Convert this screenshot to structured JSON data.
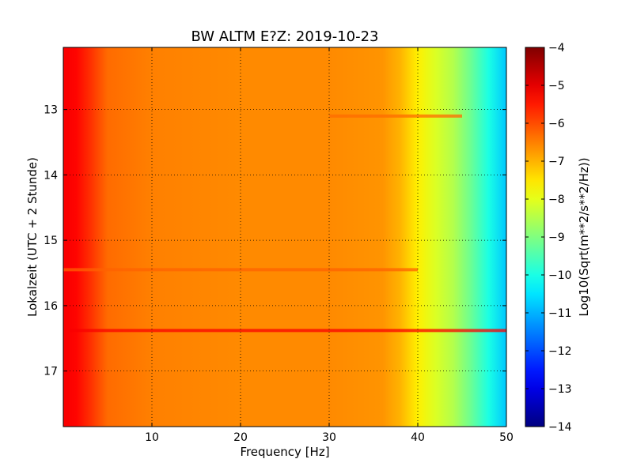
{
  "chart_data": {
    "type": "heatmap",
    "title": "BW ALTM E?Z: 2019-10-23",
    "xlabel": "Frequency [Hz]",
    "ylabel": "Lokalzeit (UTC + 2 Stunde)",
    "xlim": [
      0,
      50
    ],
    "ylim": [
      17.85,
      12.05
    ],
    "y_inverted": true,
    "x_ticks": [
      10,
      20,
      30,
      40,
      50
    ],
    "y_ticks": [
      13,
      14,
      15,
      16,
      17
    ],
    "grid": true,
    "colormap": "jet",
    "colorbar": {
      "label": "Log10(Sqrt(m**2/s**2/Hz))",
      "range": [
        -14,
        -4
      ],
      "ticks": [
        -4,
        -5,
        -6,
        -7,
        -8,
        -9,
        -10,
        -11,
        -12,
        -13,
        -14
      ]
    },
    "spectrum_profile": {
      "frequency_hz": [
        0.5,
        1.5,
        3,
        5,
        10,
        20,
        30,
        36,
        38,
        40,
        42,
        44,
        46,
        48,
        50
      ],
      "log10_amplitude": [
        -5.2,
        -5.3,
        -5.7,
        -6.3,
        -6.5,
        -6.6,
        -6.6,
        -6.7,
        -7.0,
        -7.6,
        -8.1,
        -8.5,
        -9.2,
        -10.0,
        -10.8
      ]
    },
    "features": [
      {
        "hour": 16.38,
        "freq_range_hz": [
          0,
          50
        ],
        "log10_amplitude": -5.2
      },
      {
        "hour": 15.45,
        "freq_range_hz": [
          0,
          40
        ],
        "log10_amplitude": -6.2
      },
      {
        "hour": 13.1,
        "freq_range_hz": [
          30,
          45
        ],
        "log10_amplitude": -6.3
      }
    ]
  },
  "colors": {
    "axes": "#000000",
    "grid": "#000000",
    "background": "#ffffff"
  }
}
